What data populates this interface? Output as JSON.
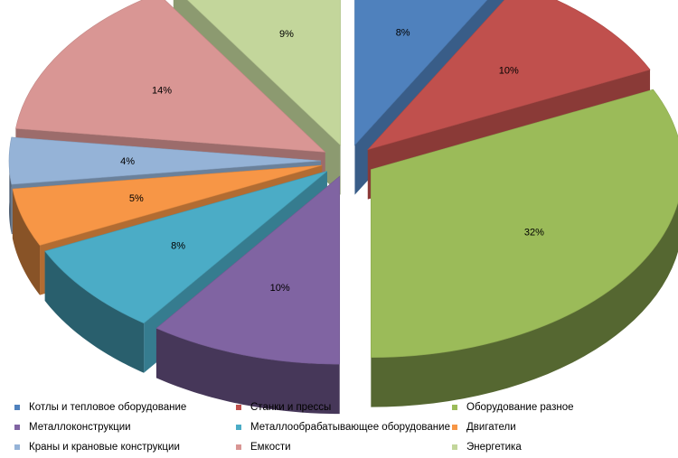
{
  "chart_data": {
    "type": "pie",
    "style": "3d-exploded",
    "title": "",
    "slices": [
      {
        "label": "Котлы и тепловое оборудование",
        "value": 8,
        "display": "8%",
        "color": "#4F81BD"
      },
      {
        "label": "Станки и прессы",
        "value": 10,
        "display": "10%",
        "color": "#C0504D"
      },
      {
        "label": "Оборудование разное",
        "value": 32,
        "display": "32%",
        "color": "#9BBB59"
      },
      {
        "label": "Металлоконструкции",
        "value": 10,
        "display": "10%",
        "color": "#8064A2"
      },
      {
        "label": "Металлообрабатывающее оборудование",
        "value": 8,
        "display": "8%",
        "color": "#4BACC6"
      },
      {
        "label": "Двигатели",
        "value": 5,
        "display": "5%",
        "color": "#F79646"
      },
      {
        "label": "Краны и крановые конструкции",
        "value": 4,
        "display": "4%",
        "color": "#95B3D7"
      },
      {
        "label": "Емкости",
        "value": 14,
        "display": "14%",
        "color": "#D99694"
      },
      {
        "label": "Энергетика",
        "value": 9,
        "display": "9%",
        "color": "#C3D69B"
      }
    ],
    "legend_position": "bottom"
  }
}
